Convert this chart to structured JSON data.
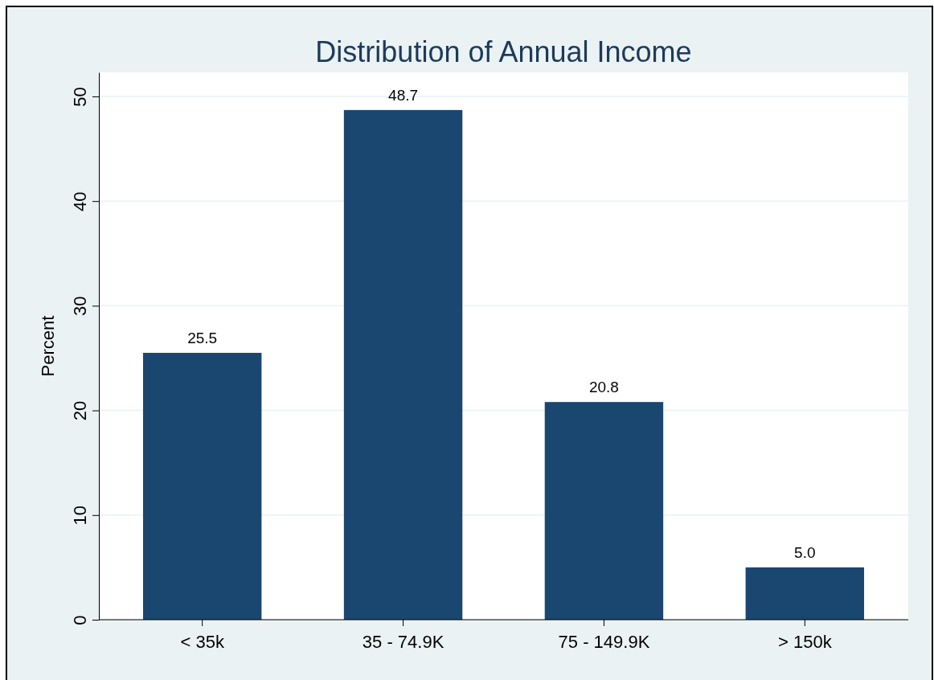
{
  "chart_data": {
    "type": "bar",
    "title": "Distribution of Annual Income",
    "ylabel": "Percent",
    "categories": [
      "< 35k",
      "35 - 74.9K",
      "75 - 149.9K",
      "> 150k"
    ],
    "values": [
      25.5,
      48.7,
      20.8,
      5.0
    ],
    "value_labels": [
      "25.5",
      "48.7",
      "20.8",
      "5.0"
    ],
    "color": "#1a476f",
    "ylim": [
      0,
      52.3
    ],
    "yticks": [
      0,
      10,
      20,
      30,
      40,
      50
    ],
    "grid": "y"
  }
}
